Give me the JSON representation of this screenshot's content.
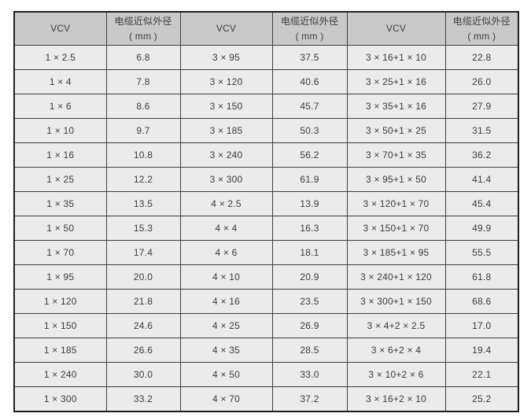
{
  "table": {
    "title_semantic": "cable-approximate-outer-diameter-table",
    "columns": [
      {
        "key": "vcv_1",
        "label": "VCV"
      },
      {
        "key": "od_1",
        "label_line1": "电缆近似外径",
        "label_line2": "( mm )"
      },
      {
        "key": "vcv_2",
        "label": "VCV"
      },
      {
        "key": "od_2",
        "label_line1": "电缆近似外径",
        "label_line2": "( mm )"
      },
      {
        "key": "vcv_3",
        "label": "VCV"
      },
      {
        "key": "od_3",
        "label_line1": "电缆近似外径",
        "label_line2": "( mm )"
      }
    ],
    "rows": [
      [
        "1 × 2.5",
        "6.8",
        "3 × 95",
        "37.5",
        "3 × 16+1 × 10",
        "22.8"
      ],
      [
        "1 × 4",
        "7.8",
        "3 × 120",
        "40.6",
        "3 × 25+1 × 16",
        "26.0"
      ],
      [
        "1 × 6",
        "8.6",
        "3 × 150",
        "45.7",
        "3 × 35+1 × 16",
        "27.9"
      ],
      [
        "1 × 10",
        "9.7",
        "3 × 185",
        "50.3",
        "3 × 50+1 × 25",
        "31.5"
      ],
      [
        "1 × 16",
        "10.8",
        "3 × 240",
        "56.2",
        "3 × 70+1 × 35",
        "36.2"
      ],
      [
        "1 × 25",
        "12.2",
        "3 × 300",
        "61.9",
        "3 × 95+1 × 50",
        "41.4"
      ],
      [
        "1 × 35",
        "13.5",
        "4 × 2.5",
        "13.9",
        "3 × 120+1 × 70",
        "45.4"
      ],
      [
        "1 × 50",
        "15.3",
        "4 × 4",
        "16.3",
        "3 × 150+1 × 70",
        "49.9"
      ],
      [
        "1 × 70",
        "17.4",
        "4 × 6",
        "18.1",
        "3 × 185+1 × 95",
        "55.5"
      ],
      [
        "1 × 95",
        "20.0",
        "4 × 10",
        "20.9",
        "3 × 240+1 × 120",
        "61.8"
      ],
      [
        "1 × 120",
        "21.8",
        "4 × 16",
        "23.5",
        "3 × 300+1 × 150",
        "68.6"
      ],
      [
        "1 × 150",
        "24.6",
        "4 × 25",
        "26.9",
        "3 × 4+2 × 2.5",
        "17.0"
      ],
      [
        "1 × 185",
        "26.6",
        "4 × 35",
        "28.5",
        "3 × 6+2 × 4",
        "19.4"
      ],
      [
        "1 × 240",
        "30.0",
        "4 × 50",
        "33.0",
        "3 × 10+2 × 6",
        "22.1"
      ],
      [
        "1 × 300",
        "33.2",
        "4 × 70",
        "37.2",
        "3 × 16+2 × 10",
        "25.2"
      ]
    ]
  },
  "colors": {
    "page_bg": "#ffffff",
    "header_bg": "#c9c9c9",
    "row_bg": "#ebebeb",
    "border": "#3d3d3d",
    "outer_border": "#1f1f1f",
    "text": "#3c3c3c"
  }
}
